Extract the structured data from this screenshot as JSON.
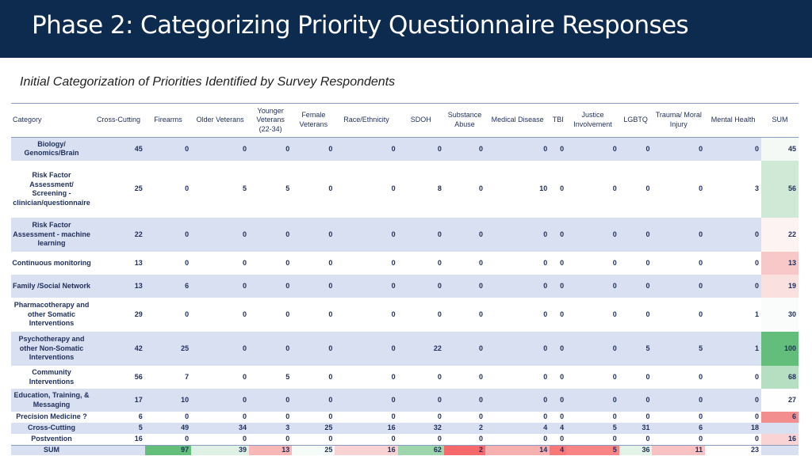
{
  "title": "Phase 2: Categorizing Priority Questionnaire Responses",
  "subtitle": "Initial Categorization of Priorities Identified by Survey Respondents",
  "headers": [
    "Category",
    "Cross-Cutting",
    "Firearms",
    "Older Veterans",
    "Younger Veterans (22-34)",
    "Female Veterans",
    "Race/Ethnicity",
    "SDOH",
    "Substance Abuse",
    "Medical Disease",
    "TBI",
    "Justice Involvement",
    "LGBTQ",
    "Trauma/ Moral Injury",
    "Mental Health",
    "SUM"
  ],
  "rows": [
    {
      "category": "Biology/ Genomics/Brain",
      "values": [
        "45",
        "0",
        "0",
        "0",
        "0",
        "0",
        "0",
        "0",
        "0",
        "0",
        "0",
        "0",
        "0",
        "0",
        "45"
      ],
      "sum_color": "#f4f9f5"
    },
    {
      "category": "Risk Factor Assessment/ Screening - clinician/questionnaire",
      "values": [
        "25",
        "0",
        "5",
        "5",
        "0",
        "0",
        "8",
        "0",
        "10",
        "0",
        "0",
        "0",
        "0",
        "3",
        "56"
      ],
      "sum_color": "#cfe9d6"
    },
    {
      "category": "Risk Factor Assessment - machine learning",
      "values": [
        "22",
        "0",
        "0",
        "0",
        "0",
        "0",
        "0",
        "0",
        "0",
        "0",
        "0",
        "0",
        "0",
        "0",
        "22"
      ],
      "sum_color": "#fdf3f3"
    },
    {
      "category": "Continuous monitoring",
      "values": [
        "13",
        "0",
        "0",
        "0",
        "0",
        "0",
        "0",
        "0",
        "0",
        "0",
        "0",
        "0",
        "0",
        "0",
        "13"
      ],
      "sum_color": "#f8c8c8"
    },
    {
      "category": "Family /Social Network",
      "values": [
        "13",
        "6",
        "0",
        "0",
        "0",
        "0",
        "0",
        "0",
        "0",
        "0",
        "0",
        "0",
        "0",
        "0",
        "19"
      ],
      "sum_color": "#fbe0e0"
    },
    {
      "category": "Pharmacotherapy and other Somatic Interventions",
      "values": [
        "29",
        "0",
        "0",
        "0",
        "0",
        "0",
        "0",
        "0",
        "0",
        "0",
        "0",
        "0",
        "0",
        "1",
        "30"
      ],
      "sum_color": "#fafcfb"
    },
    {
      "category": "Psychotherapy and other Non-Somatic Interventions",
      "values": [
        "42",
        "25",
        "0",
        "0",
        "0",
        "0",
        "22",
        "0",
        "0",
        "0",
        "0",
        "5",
        "5",
        "1",
        "100"
      ],
      "sum_color": "#63be7b"
    },
    {
      "category": "Community Interventions",
      "values": [
        "56",
        "7",
        "0",
        "5",
        "0",
        "0",
        "0",
        "0",
        "0",
        "0",
        "0",
        "0",
        "0",
        "0",
        "68"
      ],
      "sum_color": "#b5dfc0"
    },
    {
      "category": "Education, Training, & Messaging",
      "values": [
        "17",
        "10",
        "0",
        "0",
        "0",
        "0",
        "0",
        "0",
        "0",
        "0",
        "0",
        "0",
        "0",
        "0",
        "27"
      ],
      "sum_color": "#fefefe"
    },
    {
      "category": "Precision Medicine ?",
      "values": [
        "6",
        "0",
        "0",
        "0",
        "0",
        "0",
        "0",
        "0",
        "0",
        "0",
        "0",
        "0",
        "0",
        "0",
        "6"
      ],
      "sum_color": "#f38e8e"
    },
    {
      "category": "Cross-Cutting",
      "values": [
        "5",
        "49",
        "34",
        "3",
        "25",
        "16",
        "32",
        "2",
        "4",
        "4",
        "5",
        "31",
        "6",
        "18",
        ""
      ],
      "sum_color": ""
    },
    {
      "category": "Postvention",
      "values": [
        "16",
        "0",
        "0",
        "0",
        "0",
        "0",
        "0",
        "0",
        "0",
        "0",
        "0",
        "0",
        "0",
        "0",
        "16"
      ],
      "sum_color": "#fad4d4"
    }
  ],
  "sum_row": {
    "label": "SUM",
    "values": [
      "",
      "97",
      "39",
      "13",
      "25",
      "16",
      "62",
      "2",
      "14",
      "4",
      "5",
      "36",
      "11",
      "23",
      ""
    ],
    "colors": [
      "",
      "#63be7b",
      "#dff1e4",
      "#f7b7b7",
      "#f5fbf6",
      "#f9d3d3",
      "#9dd5ac",
      "#f8696b",
      "#f6b0b0",
      "#f8787a",
      "#f88486",
      "#e4f3e8",
      "#f8c2c2",
      "#fefefe",
      ""
    ]
  }
}
